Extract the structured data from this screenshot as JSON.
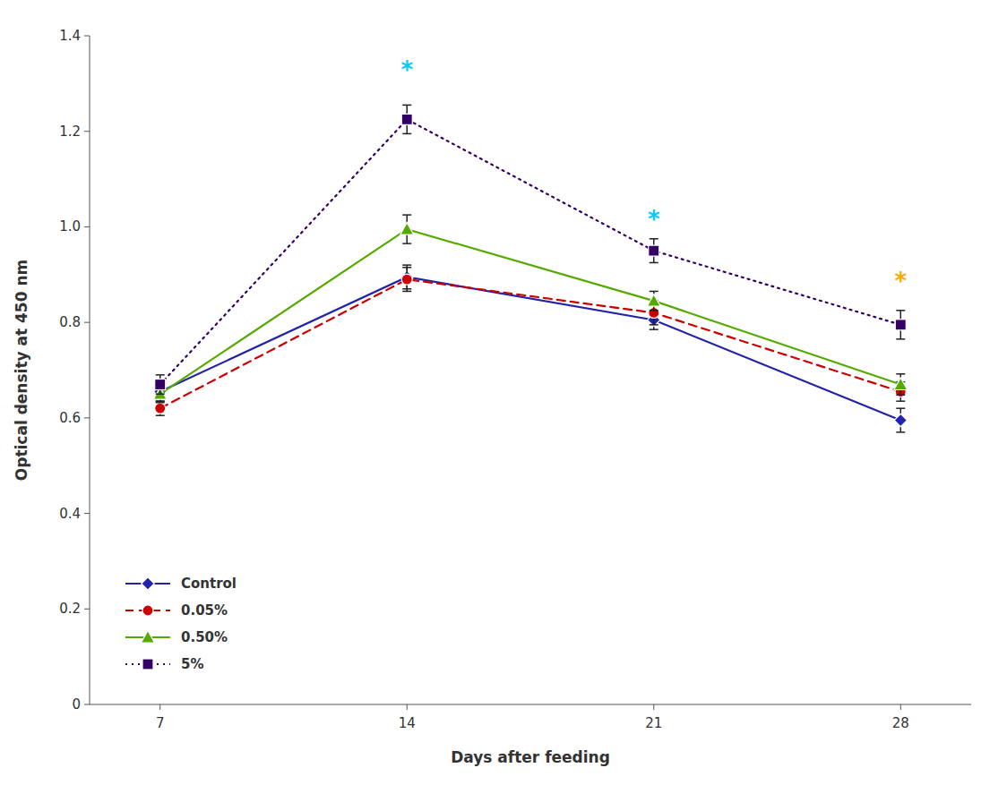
{
  "chart_data": {
    "type": "line",
    "xlabel": "Days after feeding",
    "ylabel": "Optical density at 450 nm",
    "x": [
      7,
      14,
      21,
      28
    ],
    "series": [
      {
        "name": "Control",
        "color": "#2222aa",
        "marker": "diamond",
        "line_style": "solid",
        "values": [
          0.655,
          0.895,
          0.805,
          0.595
        ],
        "errors": [
          0.02,
          0.025,
          0.02,
          0.025
        ]
      },
      {
        "name": "0.05%",
        "color": "#cc0000",
        "marker": "circle",
        "line_style": "dashed",
        "values": [
          0.62,
          0.89,
          0.82,
          0.655
        ],
        "errors": [
          0.015,
          0.025,
          0.025,
          0.02
        ]
      },
      {
        "name": "0.50%",
        "color": "#55aa00",
        "marker": "triangle",
        "line_style": "solid",
        "values": [
          0.65,
          0.995,
          0.845,
          0.67
        ],
        "errors": [
          0.018,
          0.03,
          0.02,
          0.022
        ]
      },
      {
        "name": "5%",
        "color": "#330066",
        "marker": "square",
        "line_style": "dotted",
        "values": [
          0.67,
          1.225,
          0.95,
          0.795
        ],
        "errors": [
          0.02,
          0.03,
          0.025,
          0.03
        ]
      }
    ],
    "annotations": [
      {
        "text": "*",
        "x": 14,
        "y": 1.338,
        "color": "#00ccff"
      },
      {
        "text": "*",
        "x": 21,
        "y": 1.025,
        "color": "#00ccff"
      },
      {
        "text": "*",
        "x": 28,
        "y": 0.895,
        "color": "#ffaa00"
      }
    ],
    "xlim": [
      5,
      30
    ],
    "ylim": [
      0,
      1.4
    ],
    "xticks": [
      7,
      14,
      21,
      28
    ],
    "yticks": [
      0,
      0.2,
      0.4,
      0.6,
      0.8,
      {
        "value": 1,
        "label": "1.0"
      },
      1.2,
      1.4
    ],
    "grid": false,
    "legend": "lower left"
  }
}
